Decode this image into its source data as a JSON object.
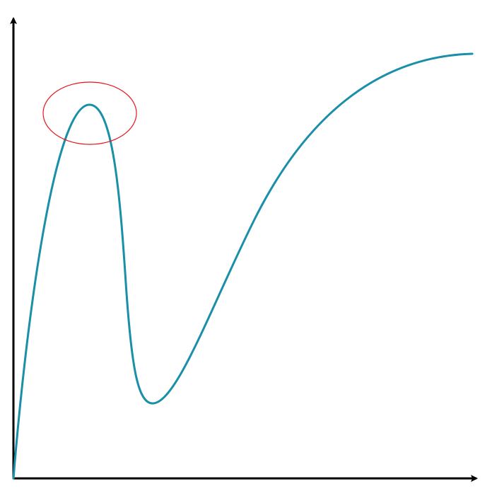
{
  "diagram": {
    "type": "curve-sketch",
    "axes": {
      "color": "#000000",
      "x_arrow": true,
      "y_arrow": true,
      "labels": false,
      "ticks": false
    },
    "curve": {
      "color": "#1a8fa8",
      "shape": "rise to peak, sharp drop to minimum, gradual rise to plateau"
    },
    "highlight": {
      "shape": "ellipse",
      "color": "#e8141c",
      "target": "peak"
    }
  }
}
